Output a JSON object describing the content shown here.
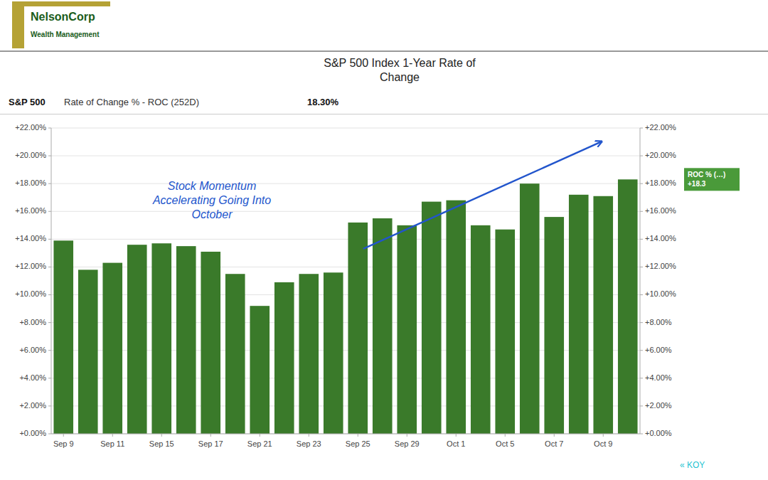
{
  "chart_data": {
    "type": "bar",
    "title": "S&P 500 Index 1-Year Rate of\nChange",
    "subtitle": [
      "S&P 500",
      "Rate of Change % - ROC (252D)",
      "18.30%"
    ],
    "categories": [
      "Sep 9",
      null,
      "Sep 11",
      null,
      "Sep 15",
      null,
      "Sep 17",
      null,
      "Sep 21",
      null,
      "Sep 23",
      null,
      "Sep 25",
      null,
      "Sep 29",
      null,
      "Oct 1",
      null,
      "Oct 5",
      null,
      "Oct 7",
      null,
      "Oct 9",
      null
    ],
    "values": [
      13.9,
      11.8,
      12.3,
      13.6,
      13.7,
      13.5,
      13.1,
      11.5,
      9.2,
      10.9,
      11.5,
      11.6,
      15.2,
      15.5,
      15.0,
      16.7,
      16.8,
      15.0,
      14.7,
      18.0,
      15.6,
      17.2,
      17.1,
      18.3
    ],
    "color": "#3a7a2a",
    "ylim": [
      0,
      22
    ],
    "yticks": [
      {
        "value": 0,
        "label": "+0.00%"
      },
      {
        "value": 2,
        "label": "+2.00%"
      },
      {
        "value": 4,
        "label": "+4.00%"
      },
      {
        "value": 6,
        "label": "+6.00%"
      },
      {
        "value": 8,
        "label": "+8.00%"
      },
      {
        "value": 10,
        "label": "+10.00%"
      },
      {
        "value": 12,
        "label": "+12.00%"
      },
      {
        "value": 14,
        "label": "+14.00%"
      },
      {
        "value": 16,
        "label": "+16.00%"
      },
      {
        "value": 18,
        "label": "+18.00%"
      },
      {
        "value": 20,
        "label": "+20.00%"
      },
      {
        "value": 22,
        "label": "+22.00%"
      }
    ],
    "grid": true,
    "annotations": [
      "Stock Momentum\nAccelerating Going Into\nOctober",
      "ROC % (…)\n+18.3",
      "NelsonCorp",
      "Wealth Management",
      "« KOY"
    ]
  }
}
